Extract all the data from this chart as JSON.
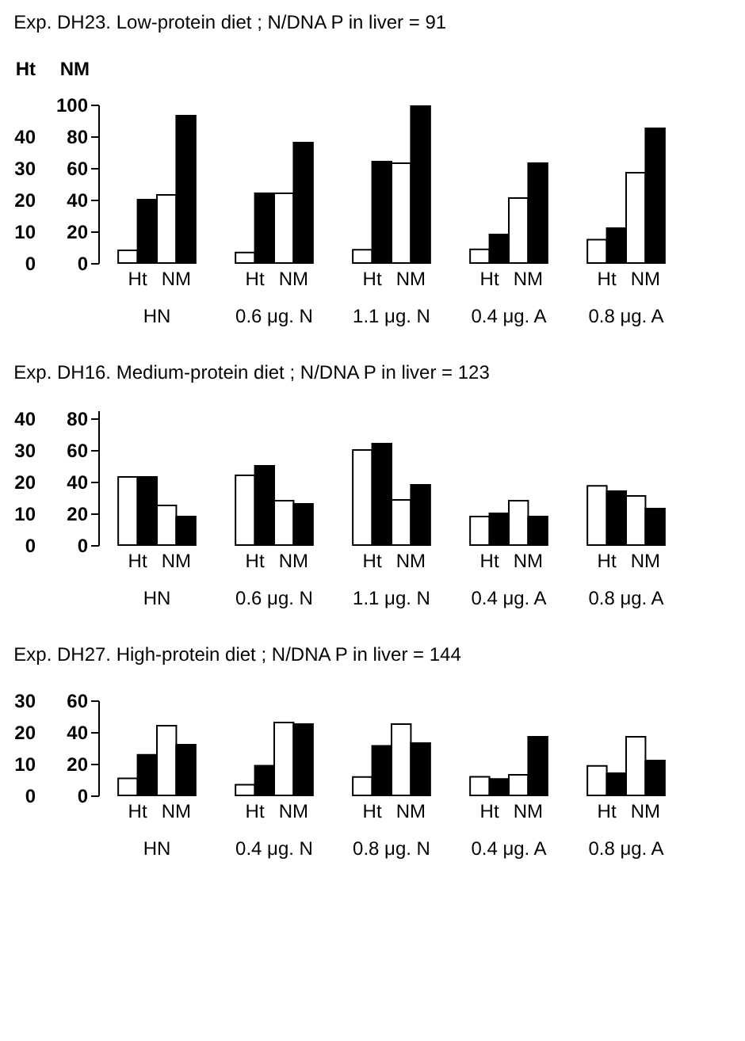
{
  "chart_data": [
    {
      "type": "bar",
      "title": "Exp. DH23.  Low-protein diet ; N/DNA  P in liver = 91",
      "ylabel": "NM",
      "y2label": "Ht",
      "categories": [
        "HN",
        "0.6 μg. N",
        "1.1 μg. N",
        "0.4 μg. A",
        "0.8 μg. A"
      ],
      "ylim": [
        0,
        100
      ],
      "yticks": [
        0,
        20,
        40,
        60,
        80,
        100
      ],
      "y2lim": [
        0,
        50
      ],
      "y2ticks": [
        0,
        10,
        20,
        30,
        40
      ],
      "series": [
        {
          "name": "Ht",
          "color": "#ffffff",
          "axis": "y2",
          "values": [
            4,
            3.3,
            4.2,
            4.3,
            7.4
          ]
        },
        {
          "color": "#000000",
          "axis": "y2",
          "values": [
            20,
            22,
            32,
            9,
            11
          ]
        },
        {
          "name": "NM",
          "color": "#ffffff",
          "values": [
            43,
            44,
            63,
            41,
            57
          ]
        },
        {
          "color": "#000000",
          "values": [
            93,
            76,
            99,
            63,
            85
          ]
        }
      ]
    },
    {
      "type": "bar",
      "title": "Exp. DH16.  Medium-protein diet ; N/DNA  P in liver = 123",
      "categories": [
        "HN",
        "0.6 μg. N",
        "1.1 μg. N",
        "0.4 μg. A",
        "0.8 μg. A"
      ],
      "ylim": [
        0,
        85
      ],
      "yticks": [
        0,
        20,
        40,
        60,
        80
      ],
      "y2lim": [
        0,
        42.5
      ],
      "y2ticks": [
        0,
        10,
        20,
        30,
        40
      ],
      "series": [
        {
          "name": "Ht",
          "color": "#ffffff",
          "axis": "y2",
          "values": [
            21.5,
            22,
            30,
            9,
            18.7
          ]
        },
        {
          "color": "#000000",
          "axis": "y2",
          "values": [
            21.5,
            25,
            32,
            10,
            17
          ]
        },
        {
          "name": "NM",
          "color": "#ffffff",
          "values": [
            25,
            28,
            28.5,
            28,
            31
          ]
        },
        {
          "color": "#000000",
          "values": [
            18,
            26,
            38,
            18,
            23
          ]
        }
      ]
    },
    {
      "type": "bar",
      "title": "Exp. DH27.  High-protein diet ; N/DNA  P in liver = 144",
      "categories": [
        "HN",
        "0.4 μg. N",
        "0.8 μg. N",
        "0.4 μg. A",
        "0.8 μg. A"
      ],
      "ylim": [
        0,
        60
      ],
      "yticks": [
        0,
        20,
        40,
        60
      ],
      "y2lim": [
        0,
        30
      ],
      "y2ticks": [
        0,
        10,
        20,
        30
      ],
      "series": [
        {
          "name": "Ht",
          "color": "#ffffff",
          "axis": "y2",
          "values": [
            5.4,
            3.4,
            5.8,
            5.9,
            9.3
          ]
        },
        {
          "color": "#000000",
          "axis": "y2",
          "values": [
            12.8,
            9.4,
            15.6,
            5.2,
            7
          ]
        },
        {
          "name": "NM",
          "color": "#ffffff",
          "values": [
            44,
            46,
            45,
            13,
            37
          ]
        },
        {
          "color": "#000000",
          "values": [
            32,
            45,
            33,
            37,
            22
          ]
        }
      ]
    }
  ]
}
